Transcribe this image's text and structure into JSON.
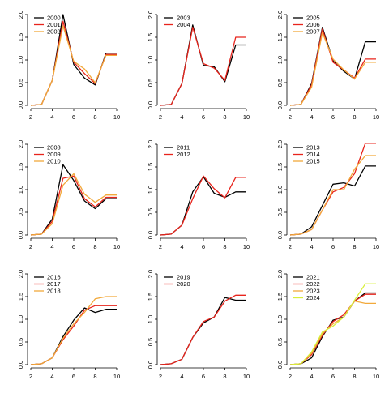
{
  "colors": {
    "palette": [
      "#000000",
      "#e8241c",
      "#f2a93b",
      "#d8ef3a"
    ]
  },
  "chart_data": [
    {
      "type": "line",
      "title": "",
      "xlabel": "",
      "ylabel": "",
      "xlim": [
        2,
        10
      ],
      "ylim": [
        0,
        2
      ],
      "x_ticks": [
        "2",
        "4",
        "6",
        "8",
        "10"
      ],
      "y_ticks": [
        "0.0",
        "0.5",
        "1.0",
        "1.5",
        "2.0"
      ],
      "legend": "top-left",
      "x": [
        2,
        3,
        4,
        5,
        6,
        7,
        8,
        9,
        10
      ],
      "series": [
        {
          "name": "2000",
          "color": "#000000",
          "values": [
            0.0,
            0.02,
            0.55,
            2.0,
            0.9,
            0.6,
            0.45,
            1.15,
            1.15
          ]
        },
        {
          "name": "2001",
          "color": "#e8241c",
          "values": [
            0.0,
            0.02,
            0.55,
            1.85,
            0.95,
            0.7,
            0.48,
            1.12,
            1.12
          ]
        },
        {
          "name": "2002",
          "color": "#f2a93b",
          "values": [
            0.0,
            0.02,
            0.55,
            1.75,
            0.97,
            0.8,
            0.5,
            1.1,
            1.1
          ]
        }
      ]
    },
    {
      "type": "line",
      "title": "",
      "xlabel": "",
      "ylabel": "",
      "xlim": [
        2,
        10
      ],
      "ylim": [
        0,
        2
      ],
      "x_ticks": [
        "2",
        "4",
        "6",
        "8",
        "10"
      ],
      "y_ticks": [
        "0.0",
        "0.5",
        "1.0",
        "1.5",
        "2.0"
      ],
      "legend": "top-left",
      "x": [
        2,
        3,
        4,
        5,
        6,
        7,
        8,
        9,
        10
      ],
      "series": [
        {
          "name": "2003",
          "color": "#000000",
          "values": [
            0.0,
            0.02,
            0.48,
            1.77,
            0.88,
            0.85,
            0.52,
            1.33,
            1.33
          ]
        },
        {
          "name": "2004",
          "color": "#e8241c",
          "values": [
            0.0,
            0.02,
            0.48,
            1.72,
            0.92,
            0.82,
            0.55,
            1.5,
            1.5
          ]
        }
      ]
    },
    {
      "type": "line",
      "title": "",
      "xlabel": "",
      "ylabel": "",
      "xlim": [
        2,
        10
      ],
      "ylim": [
        0,
        2
      ],
      "x_ticks": [
        "2",
        "4",
        "6",
        "8",
        "10"
      ],
      "y_ticks": [
        "0.0",
        "0.5",
        "1.0",
        "1.5",
        "2.0"
      ],
      "legend": "top-left",
      "x": [
        2,
        3,
        4,
        5,
        6,
        7,
        8,
        9,
        10
      ],
      "series": [
        {
          "name": "2005",
          "color": "#000000",
          "values": [
            0.0,
            0.02,
            0.48,
            1.72,
            0.98,
            0.75,
            0.58,
            1.4,
            1.4
          ]
        },
        {
          "name": "2006",
          "color": "#e8241c",
          "values": [
            0.0,
            0.02,
            0.45,
            1.68,
            0.95,
            0.78,
            0.6,
            1.02,
            1.02
          ]
        },
        {
          "name": "2007",
          "color": "#f2a93b",
          "values": [
            0.0,
            0.02,
            0.4,
            1.6,
            1.02,
            0.78,
            0.58,
            0.95,
            0.95
          ]
        }
      ]
    },
    {
      "type": "line",
      "title": "",
      "xlabel": "",
      "ylabel": "",
      "xlim": [
        2,
        10
      ],
      "ylim": [
        0,
        2
      ],
      "x_ticks": [
        "2",
        "4",
        "6",
        "8",
        "10"
      ],
      "y_ticks": [
        "0.0",
        "0.5",
        "1.0",
        "1.5",
        "2.0"
      ],
      "legend": "top-left",
      "x": [
        2,
        3,
        4,
        5,
        6,
        7,
        8,
        9,
        10
      ],
      "series": [
        {
          "name": "2008",
          "color": "#000000",
          "values": [
            0.0,
            0.02,
            0.35,
            1.55,
            1.2,
            0.75,
            0.58,
            0.8,
            0.8
          ]
        },
        {
          "name": "2009",
          "color": "#e8241c",
          "values": [
            0.0,
            0.02,
            0.3,
            1.25,
            1.3,
            0.8,
            0.62,
            0.83,
            0.83
          ]
        },
        {
          "name": "2010",
          "color": "#f2a93b",
          "values": [
            0.0,
            0.02,
            0.25,
            1.1,
            1.35,
            0.9,
            0.72,
            0.88,
            0.88
          ]
        }
      ]
    },
    {
      "type": "line",
      "title": "",
      "xlabel": "",
      "ylabel": "",
      "xlim": [
        2,
        10
      ],
      "ylim": [
        0,
        2
      ],
      "x_ticks": [
        "2",
        "4",
        "6",
        "8",
        "10"
      ],
      "y_ticks": [
        "0.0",
        "0.5",
        "1.0",
        "1.5",
        "2.0"
      ],
      "legend": "top-left",
      "x": [
        2,
        3,
        4,
        5,
        6,
        7,
        8,
        9,
        10
      ],
      "series": [
        {
          "name": "2011",
          "color": "#000000",
          "values": [
            0.0,
            0.02,
            0.22,
            0.95,
            1.28,
            0.92,
            0.83,
            0.95,
            0.95
          ]
        },
        {
          "name": "2012",
          "color": "#e8241c",
          "values": [
            0.0,
            0.02,
            0.22,
            0.8,
            1.3,
            1.02,
            0.82,
            1.27,
            1.27
          ]
        }
      ]
    },
    {
      "type": "line",
      "title": "",
      "xlabel": "",
      "ylabel": "",
      "xlim": [
        2,
        10
      ],
      "ylim": [
        0,
        2
      ],
      "x_ticks": [
        "2",
        "4",
        "6",
        "8",
        "10"
      ],
      "y_ticks": [
        "0.0",
        "0.5",
        "1.0",
        "1.5",
        "2.0"
      ],
      "legend": "top-left",
      "x": [
        2,
        3,
        4,
        5,
        6,
        7,
        8,
        9,
        10
      ],
      "series": [
        {
          "name": "2013",
          "color": "#000000",
          "values": [
            0.0,
            0.02,
            0.18,
            0.65,
            1.12,
            1.15,
            1.08,
            1.52,
            1.52
          ]
        },
        {
          "name": "2014",
          "color": "#e8241c",
          "values": [
            0.0,
            0.02,
            0.12,
            0.55,
            0.95,
            1.05,
            1.35,
            2.02,
            2.02
          ]
        },
        {
          "name": "2015",
          "color": "#f2a93b",
          "values": [
            0.0,
            0.02,
            0.12,
            0.55,
            1.0,
            1.0,
            1.45,
            1.75,
            1.75
          ]
        }
      ]
    },
    {
      "type": "line",
      "title": "",
      "xlabel": "",
      "ylabel": "",
      "xlim": [
        2,
        10
      ],
      "ylim": [
        0,
        2
      ],
      "x_ticks": [
        "2",
        "4",
        "6",
        "8",
        "10"
      ],
      "y_ticks": [
        "0.0",
        "0.5",
        "1.0",
        "1.5",
        "2.0"
      ],
      "legend": "top-left",
      "x": [
        2,
        3,
        4,
        5,
        6,
        7,
        8,
        9,
        10
      ],
      "series": [
        {
          "name": "2016",
          "color": "#000000",
          "values": [
            0.0,
            0.02,
            0.15,
            0.62,
            0.98,
            1.25,
            1.15,
            1.22,
            1.22
          ]
        },
        {
          "name": "2017",
          "color": "#e8241c",
          "values": [
            0.0,
            0.02,
            0.15,
            0.55,
            0.85,
            1.2,
            1.3,
            1.3,
            1.3
          ]
        },
        {
          "name": "2018",
          "color": "#f2a93b",
          "values": [
            0.0,
            0.02,
            0.15,
            0.58,
            0.9,
            1.15,
            1.45,
            1.5,
            1.5
          ]
        }
      ]
    },
    {
      "type": "line",
      "title": "",
      "xlabel": "",
      "ylabel": "",
      "xlim": [
        2,
        10
      ],
      "ylim": [
        0,
        2
      ],
      "x_ticks": [
        "2",
        "4",
        "6",
        "8",
        "10"
      ],
      "y_ticks": [
        "0.0",
        "0.5",
        "1.0",
        "1.5",
        "2.0"
      ],
      "legend": "top-left",
      "x": [
        2,
        3,
        4,
        5,
        6,
        7,
        8,
        9,
        10
      ],
      "series": [
        {
          "name": "2019",
          "color": "#000000",
          "values": [
            0.0,
            0.02,
            0.12,
            0.6,
            0.92,
            1.05,
            1.48,
            1.42,
            1.42
          ]
        },
        {
          "name": "2020",
          "color": "#e8241c",
          "values": [
            0.0,
            0.02,
            0.12,
            0.6,
            0.95,
            1.05,
            1.4,
            1.53,
            1.53
          ]
        }
      ]
    },
    {
      "type": "line",
      "title": "",
      "xlabel": "",
      "ylabel": "",
      "xlim": [
        2,
        10
      ],
      "ylim": [
        0,
        2
      ],
      "x_ticks": [
        "2",
        "4",
        "6",
        "8",
        "10"
      ],
      "y_ticks": [
        "0.0",
        "0.5",
        "1.0",
        "1.5",
        "2.0"
      ],
      "legend": "top-left",
      "x": [
        2,
        3,
        4,
        5,
        6,
        7,
        8,
        9,
        10
      ],
      "series": [
        {
          "name": "2021",
          "color": "#000000",
          "values": [
            0.0,
            0.02,
            0.15,
            0.62,
            0.98,
            1.05,
            1.4,
            1.58,
            1.58
          ]
        },
        {
          "name": "2022",
          "color": "#e8241c",
          "values": [
            0.0,
            0.02,
            0.22,
            0.65,
            0.95,
            1.1,
            1.4,
            1.55,
            1.55
          ]
        },
        {
          "name": "2023",
          "color": "#f2a93b",
          "values": [
            0.0,
            0.02,
            0.25,
            0.68,
            0.9,
            1.05,
            1.4,
            1.35,
            1.35
          ]
        },
        {
          "name": "2024",
          "color": "#d8ef3a",
          "values": [
            0.0,
            0.02,
            0.28,
            0.72,
            0.85,
            1.05,
            1.42,
            1.78,
            1.78
          ]
        }
      ]
    }
  ]
}
